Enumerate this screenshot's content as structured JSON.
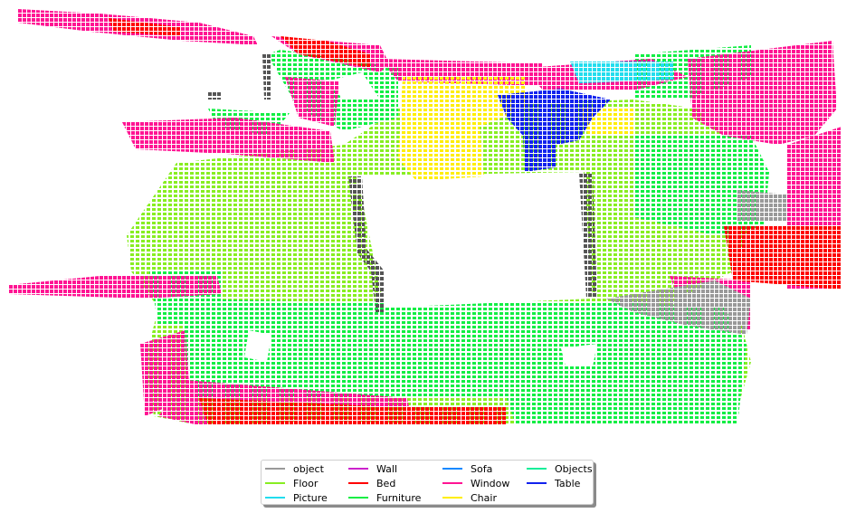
{
  "legend": [
    {
      "label": "object",
      "color": "#999999"
    },
    {
      "label": "Floor",
      "color": "#88ee22"
    },
    {
      "label": "Picture",
      "color": "#22ddee"
    },
    {
      "label": "Wall",
      "color": "#cc22cc"
    },
    {
      "label": "Bed",
      "color": "#ff0000"
    },
    {
      "label": "Furniture",
      "color": "#11ee44"
    },
    {
      "label": "Sofa",
      "color": "#1188ff"
    },
    {
      "label": "Window",
      "color": "#ff1493"
    },
    {
      "label": "Chair",
      "color": "#ffee00"
    },
    {
      "label": "Objects",
      "color": "#11ee99"
    },
    {
      "label": "Table",
      "color": "#1122ee"
    }
  ]
}
